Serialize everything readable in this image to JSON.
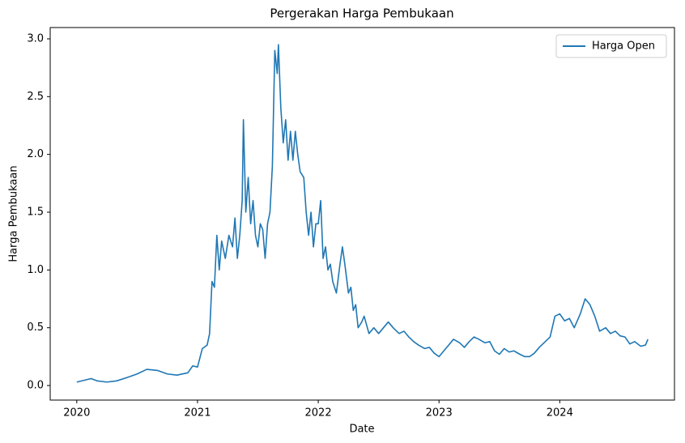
{
  "chart_data": {
    "type": "line",
    "title": "Pergerakan Harga Pembukaan",
    "x_label": "Date",
    "y_label": "Harga Pembukaan",
    "x": [
      2020.0,
      2020.08,
      2020.12,
      2020.17,
      2020.25,
      2020.33,
      2020.42,
      2020.5,
      2020.58,
      2020.67,
      2020.75,
      2020.83,
      2020.92,
      2020.96,
      2021.0,
      2021.04,
      2021.08,
      2021.1,
      2021.12,
      2021.14,
      2021.16,
      2021.18,
      2021.2,
      2021.23,
      2021.26,
      2021.29,
      2021.31,
      2021.33,
      2021.35,
      2021.37,
      2021.38,
      2021.4,
      2021.42,
      2021.44,
      2021.46,
      2021.48,
      2021.5,
      2021.52,
      2021.54,
      2021.56,
      2021.58,
      2021.6,
      2021.62,
      2021.64,
      2021.66,
      2021.67,
      2021.69,
      2021.71,
      2021.73,
      2021.75,
      2021.77,
      2021.79,
      2021.81,
      2021.83,
      2021.85,
      2021.88,
      2021.9,
      2021.92,
      2021.94,
      2021.96,
      2021.98,
      2022.0,
      2022.02,
      2022.04,
      2022.06,
      2022.08,
      2022.1,
      2022.12,
      2022.15,
      2022.18,
      2022.2,
      2022.22,
      2022.25,
      2022.27,
      2022.29,
      2022.31,
      2022.33,
      2022.36,
      2022.38,
      2022.42,
      2022.46,
      2022.5,
      2022.54,
      2022.58,
      2022.62,
      2022.67,
      2022.71,
      2022.75,
      2022.79,
      2022.83,
      2022.88,
      2022.92,
      2022.96,
      2023.0,
      2023.04,
      2023.08,
      2023.12,
      2023.17,
      2023.21,
      2023.25,
      2023.29,
      2023.33,
      2023.38,
      2023.42,
      2023.46,
      2023.5,
      2023.54,
      2023.58,
      2023.62,
      2023.67,
      2023.71,
      2023.75,
      2023.79,
      2023.83,
      2023.88,
      2023.92,
      2023.96,
      2024.0,
      2024.04,
      2024.08,
      2024.12,
      2024.17,
      2024.21,
      2024.25,
      2024.29,
      2024.33,
      2024.38,
      2024.42,
      2024.46,
      2024.5,
      2024.54,
      2024.58,
      2024.62,
      2024.67,
      2024.71,
      2024.73
    ],
    "series": [
      {
        "name": "Harga Open",
        "color": "#1f77b4",
        "values": [
          0.03,
          0.05,
          0.06,
          0.04,
          0.03,
          0.04,
          0.07,
          0.1,
          0.14,
          0.13,
          0.1,
          0.09,
          0.11,
          0.17,
          0.16,
          0.32,
          0.35,
          0.45,
          0.9,
          0.85,
          1.3,
          1.0,
          1.25,
          1.1,
          1.3,
          1.2,
          1.45,
          1.1,
          1.3,
          1.6,
          2.3,
          1.5,
          1.8,
          1.4,
          1.6,
          1.3,
          1.2,
          1.4,
          1.35,
          1.1,
          1.4,
          1.5,
          1.9,
          2.9,
          2.7,
          2.95,
          2.4,
          2.1,
          2.3,
          1.95,
          2.2,
          1.95,
          2.2,
          2.0,
          1.85,
          1.8,
          1.5,
          1.3,
          1.5,
          1.2,
          1.4,
          1.4,
          1.6,
          1.1,
          1.2,
          1.0,
          1.05,
          0.9,
          0.8,
          1.05,
          1.2,
          1.05,
          0.8,
          0.85,
          0.65,
          0.7,
          0.5,
          0.55,
          0.6,
          0.45,
          0.5,
          0.45,
          0.5,
          0.55,
          0.5,
          0.45,
          0.47,
          0.42,
          0.38,
          0.35,
          0.32,
          0.33,
          0.28,
          0.25,
          0.3,
          0.35,
          0.4,
          0.37,
          0.33,
          0.38,
          0.42,
          0.4,
          0.37,
          0.38,
          0.3,
          0.27,
          0.32,
          0.29,
          0.3,
          0.27,
          0.25,
          0.25,
          0.28,
          0.33,
          0.38,
          0.42,
          0.6,
          0.62,
          0.56,
          0.58,
          0.5,
          0.62,
          0.75,
          0.7,
          0.6,
          0.47,
          0.5,
          0.45,
          0.47,
          0.43,
          0.42,
          0.36,
          0.38,
          0.34,
          0.35,
          0.4
        ]
      }
    ],
    "xlim": [
      2019.78,
      2024.95
    ],
    "xticks": [
      2020,
      2021,
      2022,
      2023,
      2024
    ],
    "ylim": [
      -0.126,
      3.098
    ],
    "yticks": [
      {
        "value": 0,
        "label": "0.0"
      },
      0.5,
      {
        "value": 1,
        "label": "1.0"
      },
      1.5,
      {
        "value": 2,
        "label": "2.0"
      },
      2.5,
      {
        "value": 3,
        "label": "3.0"
      }
    ],
    "grid": false,
    "legend": "upper-right"
  }
}
